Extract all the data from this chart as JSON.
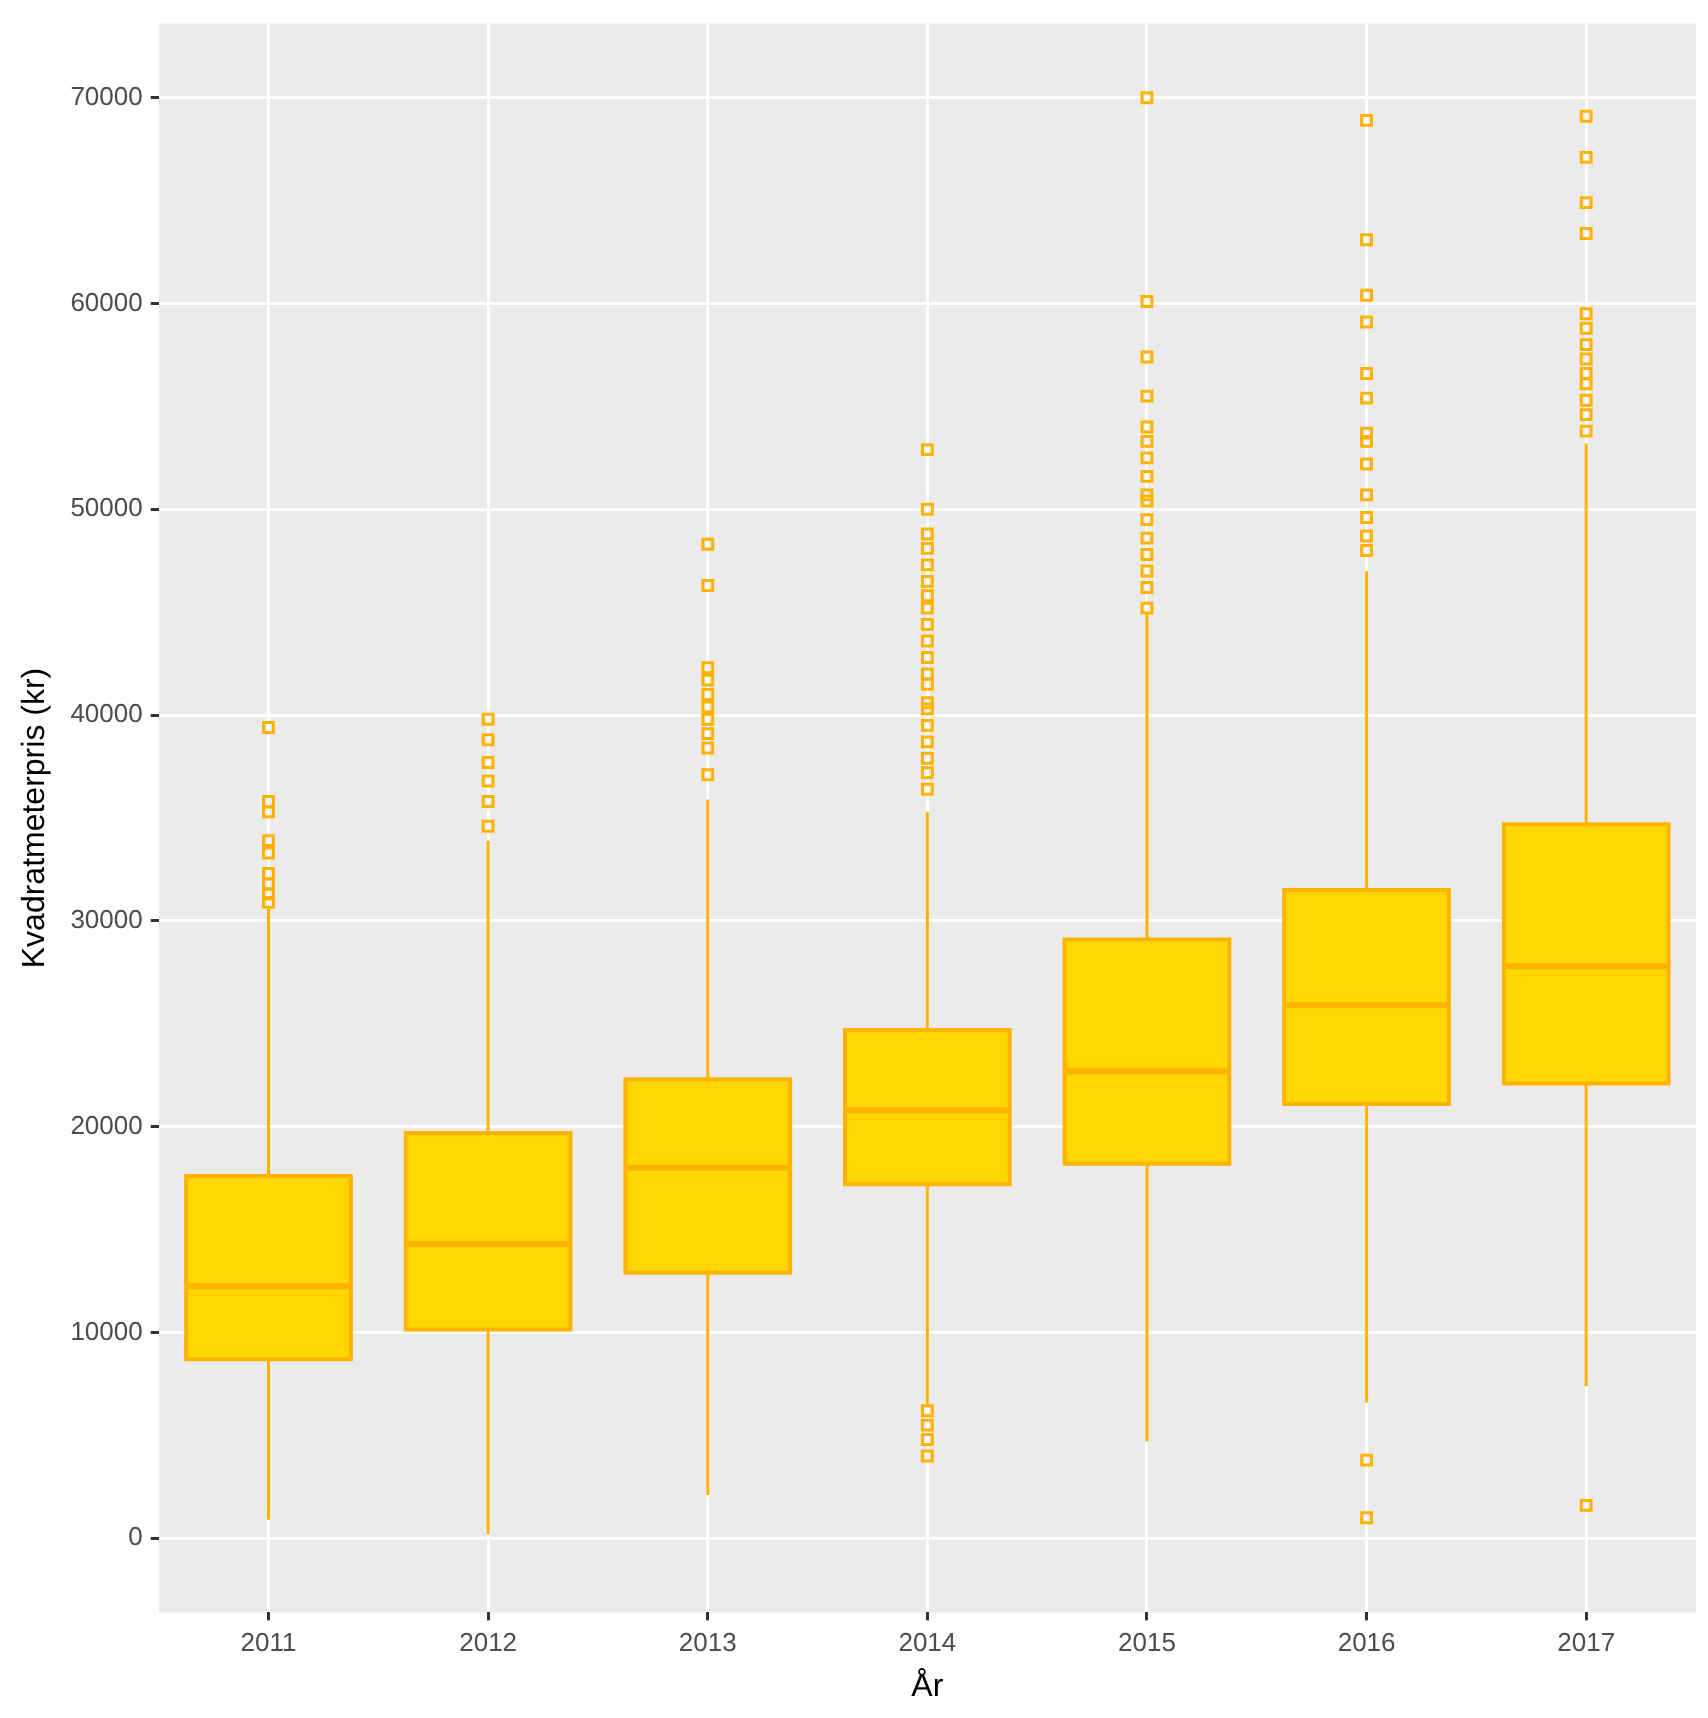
{
  "chart_data": {
    "type": "box",
    "xlabel": "År",
    "ylabel": "Kvadratmeterpris (kr)",
    "color": "#ffd700",
    "categories": [
      "2011",
      "2012",
      "2013",
      "2014",
      "2015",
      "2016",
      "2017"
    ],
    "boxes": [
      {
        "low": 900,
        "q1": 8700,
        "median": 12250,
        "q3": 17600,
        "high": 30600,
        "outliers": [
          39400,
          35800,
          35300,
          33900,
          33300,
          32300,
          31800,
          31300,
          30900
        ]
      },
      {
        "low": 200,
        "q1": 10150,
        "median": 14300,
        "q3": 19700,
        "high": 33900,
        "outliers": [
          39800,
          38800,
          37700,
          36800,
          35800,
          34600
        ]
      },
      {
        "low": 2100,
        "q1": 12900,
        "median": 18000,
        "q3": 22300,
        "high": 35900,
        "outliers": [
          48300,
          46300,
          42300,
          41700,
          41000,
          40400,
          39800,
          39100,
          38400,
          37100
        ]
      },
      {
        "low": 6500,
        "q1": 17200,
        "median": 20800,
        "q3": 24700,
        "high": 35300,
        "outliers": [
          52900,
          50000,
          48800,
          48100,
          47300,
          46500,
          45800,
          45200,
          44400,
          43600,
          42800,
          42000,
          41500,
          40600,
          40300,
          39500,
          38700,
          37900,
          37200,
          36400,
          6200,
          5500,
          4800,
          4000
        ]
      },
      {
        "low": 4700,
        "q1": 18200,
        "median": 22700,
        "q3": 29100,
        "high": 45000,
        "outliers": [
          70000,
          60100,
          57400,
          55500,
          54000,
          53300,
          52500,
          51600,
          50700,
          50400,
          49500,
          48600,
          47800,
          47000,
          46200,
          45200
        ]
      },
      {
        "low": 6600,
        "q1": 21100,
        "median": 25900,
        "q3": 31500,
        "high": 47000,
        "outliers": [
          68900,
          63100,
          60400,
          59100,
          56600,
          55400,
          53700,
          53300,
          52200,
          50700,
          49600,
          48700,
          48000,
          3800,
          1000
        ]
      },
      {
        "low": 7400,
        "q1": 22100,
        "median": 27800,
        "q3": 34700,
        "high": 53200,
        "outliers": [
          69100,
          67100,
          64900,
          63400,
          59500,
          58800,
          58000,
          57300,
          56600,
          56100,
          55300,
          54600,
          53800,
          1600
        ]
      }
    ],
    "ylim": [
      -3600,
      73600
    ],
    "yticks": [
      0,
      10000,
      20000,
      30000,
      40000,
      50000,
      60000,
      70000
    ],
    "grid": true
  }
}
